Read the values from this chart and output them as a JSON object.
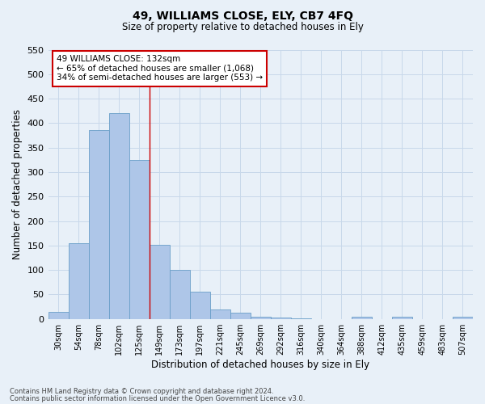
{
  "title": "49, WILLIAMS CLOSE, ELY, CB7 4FQ",
  "subtitle": "Size of property relative to detached houses in Ely",
  "xlabel": "Distribution of detached houses by size in Ely",
  "ylabel": "Number of detached properties",
  "footnote1": "Contains HM Land Registry data © Crown copyright and database right 2024.",
  "footnote2": "Contains public sector information licensed under the Open Government Licence v3.0.",
  "bar_labels": [
    "30sqm",
    "54sqm",
    "78sqm",
    "102sqm",
    "125sqm",
    "149sqm",
    "173sqm",
    "197sqm",
    "221sqm",
    "245sqm",
    "269sqm",
    "292sqm",
    "316sqm",
    "340sqm",
    "364sqm",
    "388sqm",
    "412sqm",
    "435sqm",
    "459sqm",
    "483sqm",
    "507sqm"
  ],
  "bar_values": [
    15,
    155,
    385,
    420,
    325,
    152,
    100,
    55,
    20,
    12,
    5,
    2,
    1,
    0,
    0,
    5,
    0,
    5,
    0,
    0,
    5
  ],
  "bar_color": "#aec6e8",
  "bar_edge_color": "#6a9fc8",
  "grid_color": "#c8d8ea",
  "background_color": "#e8f0f8",
  "vline_x": 4.5,
  "vline_color": "#cc0000",
  "annotation_text": "49 WILLIAMS CLOSE: 132sqm\n← 65% of detached houses are smaller (1,068)\n34% of semi-detached houses are larger (553) →",
  "annotation_box_color": "#ffffff",
  "annotation_box_edge": "#cc0000",
  "ylim": [
    0,
    550
  ],
  "yticks": [
    0,
    50,
    100,
    150,
    200,
    250,
    300,
    350,
    400,
    450,
    500,
    550
  ]
}
